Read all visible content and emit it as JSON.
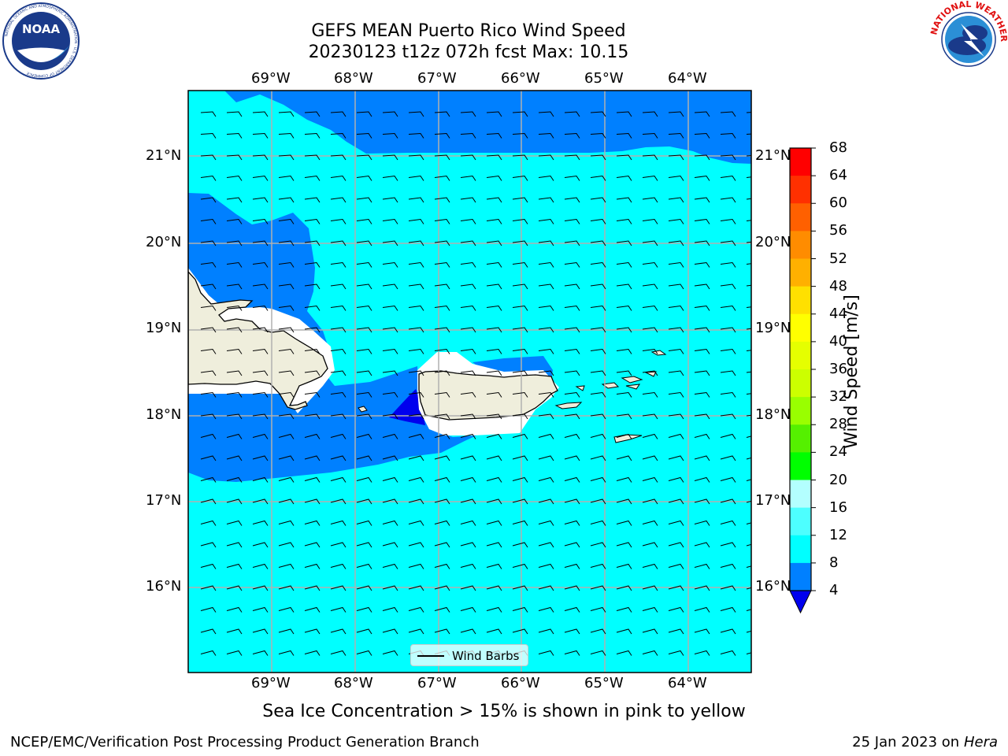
{
  "header": {
    "title_line1": "GEFS MEAN Puerto Rico Wind Speed",
    "title_line2": "20230123 t12z 072h fcst   Max: 10.15"
  },
  "logos": {
    "left": "NOAA",
    "left_ring": "NATIONAL OCEANIC AND ATMOSPHERIC ADMINISTRATION · U.S. DEPARTMENT OF COMMERCE",
    "right_ring": "NATIONAL WEATHER SERVICE"
  },
  "map": {
    "lon_labels": [
      "69°W",
      "68°W",
      "67°W",
      "66°W",
      "65°W",
      "64°W"
    ],
    "lat_labels": [
      "21°N",
      "20°N",
      "19°N",
      "18°N",
      "17°N",
      "16°N"
    ],
    "legend_label": "Wind Barbs",
    "colors": {
      "ocean_light": "#00ffff",
      "ocean_blue": "#0080ff",
      "ocean_dark": "#0000ee",
      "land": "#efeedc",
      "grid": "#b0b0b0"
    }
  },
  "colorbar": {
    "label": "Wind Speed [m/s]",
    "ticks": [
      "68",
      "64",
      "60",
      "56",
      "52",
      "48",
      "44",
      "40",
      "36",
      "32",
      "28",
      "24",
      "20",
      "16",
      "12",
      "8",
      "4"
    ],
    "colors": [
      "#ff0000",
      "#ff2400",
      "#ff5000",
      "#ff7b00",
      "#ffa500",
      "#ffc800",
      "#ffe600",
      "#ffff00",
      "#eaff00",
      "#d6ff00",
      "#bfff00",
      "#72ff00",
      "#00e600",
      "#00ff00",
      "#4dff7a",
      "#b3ffff",
      "#4dffff",
      "#00ffff",
      "#00ffff",
      "#0080ff",
      "#0000ee"
    ]
  },
  "note": "Sea Ice Concentration > 15% is shown in pink to yellow",
  "footer": {
    "left": "NCEP/EMC/Verification Post Processing Product Generation Branch",
    "right_date": "25 Jan 2023 on ",
    "right_host": "Hera"
  }
}
